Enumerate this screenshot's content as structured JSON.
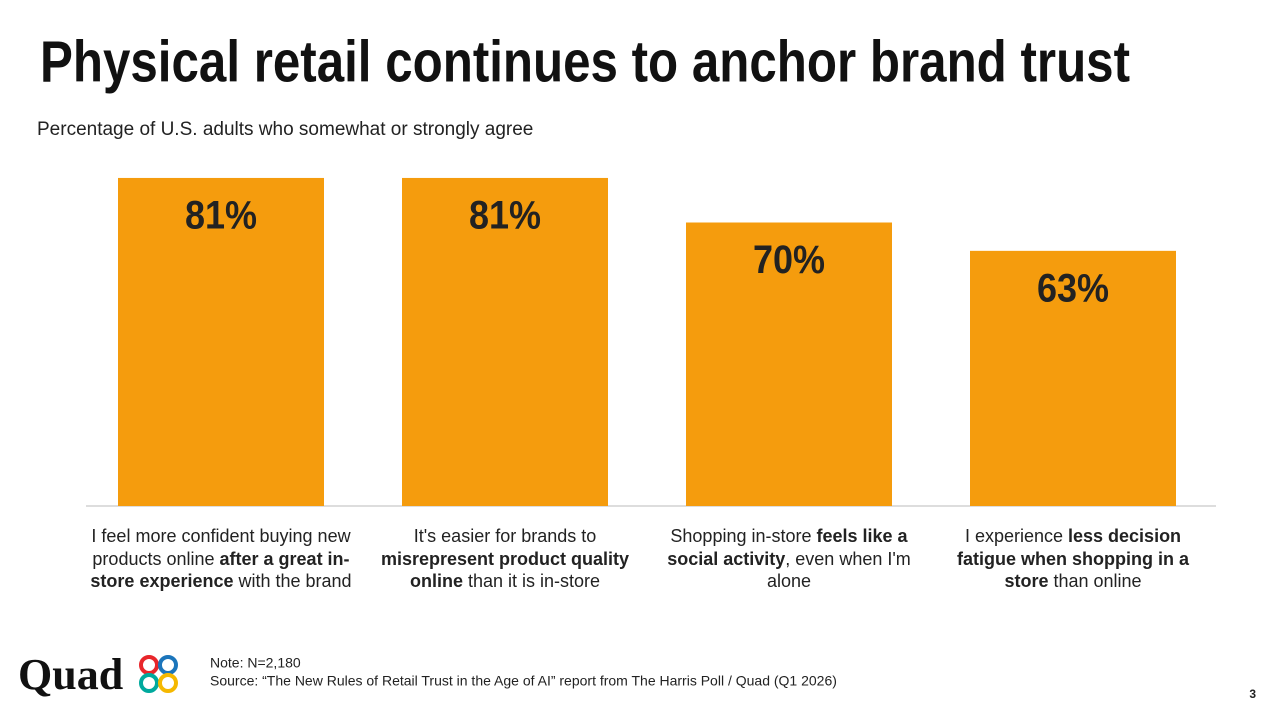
{
  "chart_data": {
    "type": "bar",
    "title": "Physical retail continues to anchor brand trust",
    "subtitle": "Percentage of U.S. adults who somewhat or strongly agree",
    "categories": [
      [
        {
          "text": "I feel more confident buying new products online ",
          "bold": false
        },
        {
          "text": "after a great in-store experience",
          "bold": true
        },
        {
          "text": " with the brand",
          "bold": false
        }
      ],
      [
        {
          "text": "It's easier for brands to ",
          "bold": false
        },
        {
          "text": "misrepresent product quality online",
          "bold": true
        },
        {
          "text": " than it is in-store",
          "bold": false
        }
      ],
      [
        {
          "text": "Shopping in-store ",
          "bold": false
        },
        {
          "text": "feels like a social activity",
          "bold": true
        },
        {
          "text": ", even when I'm alone",
          "bold": false
        }
      ],
      [
        {
          "text": "I experience ",
          "bold": false
        },
        {
          "text": "less decision fatigue when shopping in a store",
          "bold": true
        },
        {
          "text": " than online",
          "bold": false
        }
      ]
    ],
    "values": [
      81,
      81,
      70,
      63
    ],
    "value_labels": [
      "81%",
      "81%",
      "70%",
      "63%"
    ],
    "color": "#f59c0d"
  },
  "footer": {
    "logo": "Quad",
    "note": "Note: N=2,180",
    "source": "Source: “The New Rules of Retail Trust in the Age of AI” report from The Harris Poll / Quad (Q1 2026)",
    "page_number": "3"
  }
}
